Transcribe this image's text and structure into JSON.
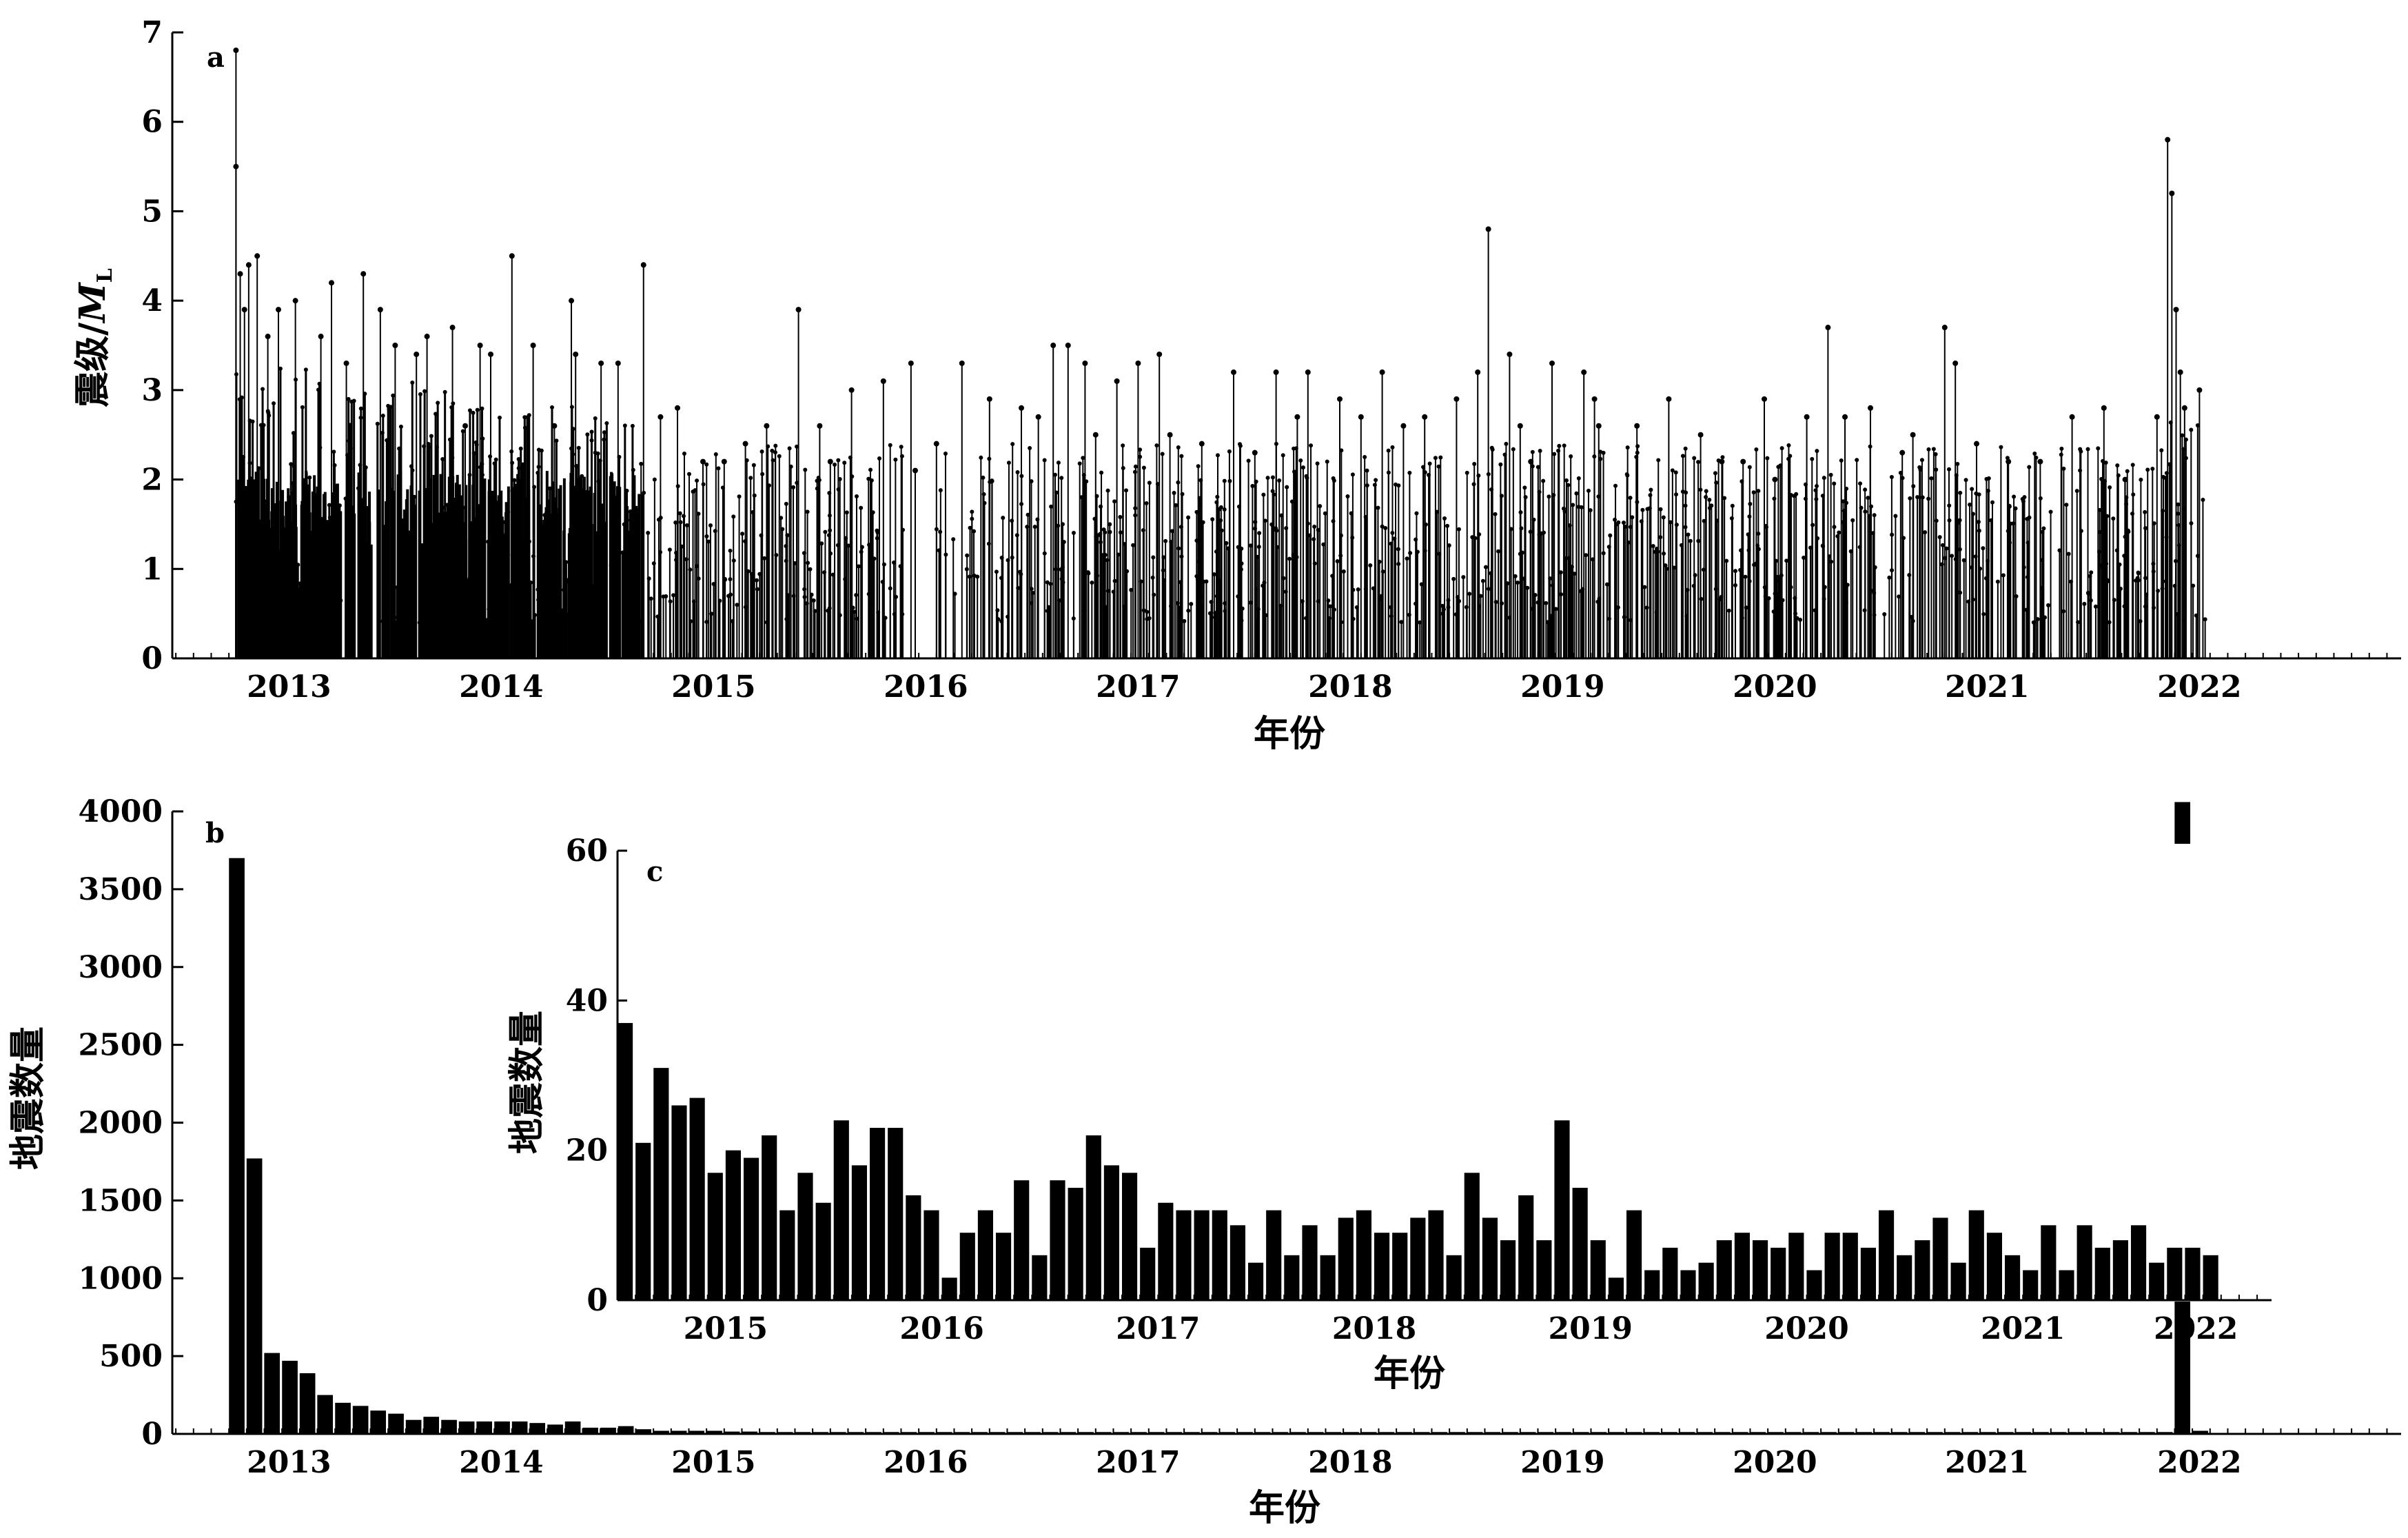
{
  "chart_data": [
    {
      "id": "a",
      "type": "scatter",
      "panel_label": "a",
      "style": "stem (vertical line from 0 to magnitude with dot marker per event)",
      "xlabel": "年份",
      "ylabel_main": "震级/",
      "ylabel_italic": "M",
      "ylabel_sub": "L",
      "ylim": [
        0,
        7
      ],
      "yticks": [
        0,
        1,
        2,
        3,
        4,
        5,
        6,
        7
      ],
      "xlim": [
        2012.4,
        2022.9
      ],
      "xticks": [
        {
          "pos": 2012.95,
          "label": "2013"
        },
        {
          "pos": 2013.95,
          "label": "2014"
        },
        {
          "pos": 2014.95,
          "label": "2015"
        },
        {
          "pos": 2015.95,
          "label": "2016"
        },
        {
          "pos": 2016.95,
          "label": "2017"
        },
        {
          "pos": 2017.95,
          "label": "2018"
        },
        {
          "pos": 2018.95,
          "label": "2019"
        },
        {
          "pos": 2019.95,
          "label": "2020"
        },
        {
          "pos": 2020.95,
          "label": "2021"
        },
        {
          "pos": 2021.95,
          "label": "2022"
        }
      ],
      "x": [
        2012.7,
        2012.7,
        2012.72,
        2012.74,
        2012.76,
        2012.8,
        2012.85,
        2012.9,
        2012.98,
        2013.1,
        2013.15,
        2013.22,
        2013.3,
        2013.38,
        2013.45,
        2013.55,
        2013.6,
        2013.72,
        2013.78,
        2013.85,
        2013.9,
        2014.0,
        2014.1,
        2014.2,
        2014.28,
        2014.3,
        2014.42,
        2014.5,
        2014.62,
        2014.7,
        2014.78,
        2014.9,
        2015.0,
        2015.1,
        2015.2,
        2015.35,
        2015.45,
        2015.5,
        2015.6,
        2015.75,
        2015.88,
        2015.9,
        2016.0,
        2016.12,
        2016.25,
        2016.4,
        2016.48,
        2016.55,
        2016.62,
        2016.7,
        2016.75,
        2016.85,
        2016.95,
        2017.05,
        2017.1,
        2017.25,
        2017.4,
        2017.5,
        2017.6,
        2017.7,
        2017.75,
        2017.9,
        2018.0,
        2018.1,
        2018.2,
        2018.3,
        2018.45,
        2018.55,
        2018.6,
        2018.7,
        2018.75,
        2018.8,
        2018.9,
        2019.05,
        2019.1,
        2019.12,
        2019.3,
        2019.45,
        2019.6,
        2019.7,
        2019.8,
        2019.9,
        2019.95,
        2020.1,
        2020.2,
        2020.28,
        2020.4,
        2020.55,
        2020.6,
        2020.75,
        2020.8,
        2020.9,
        2021.05,
        2021.2,
        2021.35,
        2021.5,
        2021.6,
        2021.75,
        2021.8,
        2021.82,
        2021.84,
        2021.86,
        2021.88,
        2021.95
      ],
      "y": [
        6.8,
        5.5,
        4.3,
        3.9,
        4.4,
        4.5,
        3.6,
        3.9,
        4.0,
        3.6,
        4.2,
        3.3,
        4.3,
        3.9,
        3.5,
        3.4,
        3.6,
        3.7,
        2.6,
        3.5,
        3.4,
        4.5,
        3.5,
        2.6,
        4.0,
        3.4,
        3.3,
        3.3,
        4.4,
        2.7,
        2.8,
        2.2,
        2.2,
        2.4,
        2.6,
        3.9,
        2.6,
        2.2,
        3.0,
        3.1,
        3.3,
        2.1,
        2.4,
        3.3,
        2.9,
        2.8,
        2.7,
        3.5,
        3.5,
        3.3,
        2.5,
        3.1,
        3.3,
        3.4,
        2.5,
        2.4,
        3.2,
        2.3,
        3.2,
        2.7,
        3.2,
        2.9,
        2.7,
        3.2,
        2.6,
        2.7,
        2.9,
        3.2,
        4.8,
        3.4,
        2.6,
        2.2,
        3.3,
        3.2,
        2.9,
        2.6,
        2.6,
        2.9,
        2.5,
        2.2,
        2.2,
        2.9,
        2.0,
        2.7,
        3.7,
        2.7,
        2.8,
        2.3,
        2.5,
        3.7,
        3.3,
        2.4,
        2.2,
        2.2,
        2.7,
        2.8,
        2.0,
        2.7,
        5.8,
        5.2,
        3.9,
        3.2,
        2.8,
        3.0
      ]
    },
    {
      "id": "b",
      "type": "bar",
      "panel_label": "b",
      "xlabel": "年份",
      "ylabel": "地震数量",
      "ylim": [
        0,
        4000
      ],
      "yticks": [
        0,
        500,
        1000,
        1500,
        2000,
        2500,
        3000,
        3500,
        4000
      ],
      "xlim": [
        2012.4,
        2022.9
      ],
      "xticks": [
        {
          "pos": 2012.95,
          "label": "2013"
        },
        {
          "pos": 2013.95,
          "label": "2014"
        },
        {
          "pos": 2014.95,
          "label": "2015"
        },
        {
          "pos": 2015.95,
          "label": "2016"
        },
        {
          "pos": 2016.95,
          "label": "2017"
        },
        {
          "pos": 2017.95,
          "label": "2018"
        },
        {
          "pos": 2018.95,
          "label": "2019"
        },
        {
          "pos": 2019.95,
          "label": "2020"
        },
        {
          "pos": 2020.95,
          "label": "2021"
        },
        {
          "pos": 2021.95,
          "label": "2022"
        }
      ],
      "bin_width": 0.08333,
      "x_start": [
        2012.667,
        2012.75,
        2012.833,
        2012.917,
        2013.0,
        2013.083,
        2013.167,
        2013.25,
        2013.333,
        2013.417,
        2013.5,
        2013.583,
        2013.667,
        2013.75,
        2013.833,
        2013.917,
        2014.0,
        2014.083,
        2014.167,
        2014.25,
        2014.333,
        2014.417,
        2014.5,
        2014.583,
        2014.667,
        2014.75,
        2014.833,
        2014.917,
        2015.0,
        2015.083,
        2021.833,
        2021.917
      ],
      "values": [
        3700,
        1770,
        520,
        470,
        390,
        250,
        200,
        180,
        150,
        130,
        90,
        110,
        90,
        80,
        80,
        80,
        80,
        70,
        60,
        80,
        40,
        40,
        50,
        30,
        20,
        20,
        20,
        20,
        15,
        15,
        4060,
        20
      ]
    },
    {
      "id": "c",
      "type": "bar",
      "panel_label": "c",
      "inset_of": "b",
      "xlabel": "年份",
      "ylabel": "地震数量",
      "ylim": [
        0,
        60
      ],
      "yticks": [
        0,
        20,
        40,
        60
      ],
      "xlim": [
        2014.75,
        2022.4
      ],
      "xticks": [
        {
          "pos": 2015.25,
          "label": "2015"
        },
        {
          "pos": 2016.25,
          "label": "2016"
        },
        {
          "pos": 2017.25,
          "label": "2017"
        },
        {
          "pos": 2018.25,
          "label": "2018"
        },
        {
          "pos": 2019.25,
          "label": "2019"
        },
        {
          "pos": 2020.25,
          "label": "2020"
        },
        {
          "pos": 2021.25,
          "label": "2021"
        },
        {
          "pos": 2022.05,
          "label": "2022"
        }
      ],
      "bin_width": 0.08333,
      "x_start_first": 2014.75,
      "values": [
        37,
        21,
        31,
        26,
        27,
        17,
        20,
        19,
        22,
        12,
        17,
        13,
        24,
        18,
        23,
        23,
        14,
        12,
        3,
        9,
        12,
        9,
        16,
        6,
        16,
        15,
        22,
        18,
        17,
        7,
        13,
        12,
        12,
        12,
        10,
        5,
        12,
        6,
        10,
        6,
        11,
        12,
        9,
        9,
        11,
        12,
        6,
        17,
        11,
        8,
        14,
        8,
        24,
        15,
        8,
        3,
        12,
        4,
        7,
        4,
        5,
        8,
        9,
        8,
        7,
        9,
        4,
        9,
        9,
        7,
        12,
        6,
        8,
        11,
        5,
        12,
        9,
        6,
        4,
        10,
        4,
        10,
        7,
        8,
        10,
        5,
        7,
        7,
        6
      ]
    }
  ]
}
